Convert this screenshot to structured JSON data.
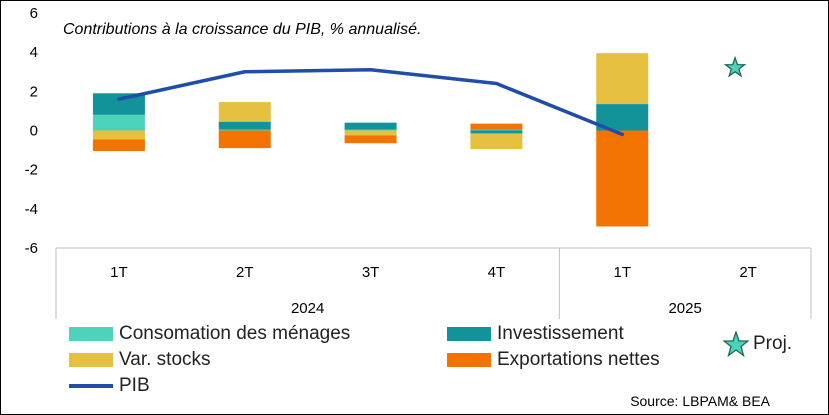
{
  "chart_data": {
    "type": "bar",
    "stacked": true,
    "title": "Contributions à la croissance du PIB, % annualisé.",
    "categories": [
      "1T",
      "2T",
      "3T",
      "4T",
      "1T",
      "2T"
    ],
    "year_groups": [
      {
        "label": "2024",
        "span": 4
      },
      {
        "label": "2025",
        "span": 2
      }
    ],
    "ylim": [
      -6,
      6
    ],
    "yticks": [
      "6",
      "4",
      "2",
      "0",
      "-2",
      "-4",
      "-6"
    ],
    "series": [
      {
        "name": "Consomation des ménages",
        "color": "#4dd3bb",
        "values": [
          0.8,
          0.05,
          0.05,
          0.05,
          0,
          null
        ]
      },
      {
        "name": "Investissement",
        "color": "#12939a",
        "values": [
          1.1,
          0.4,
          0.35,
          -0.15,
          1.35,
          null
        ]
      },
      {
        "name": "Var. stocks",
        "color": "#e6c040",
        "values": [
          -0.45,
          1.0,
          -0.25,
          -0.8,
          2.6,
          null
        ]
      },
      {
        "name": "Exportations nettes",
        "color": "#f27300",
        "values": [
          -0.6,
          -0.9,
          -0.4,
          0.3,
          -4.9,
          null
        ]
      }
    ],
    "line": {
      "name": "PIB",
      "color": "#1f4ea8",
      "values": [
        1.6,
        3.0,
        3.1,
        2.4,
        -0.2,
        null
      ]
    },
    "projection": {
      "name": "Proj.",
      "category_index": 5,
      "value": 3.2,
      "color": "#2e9e6f"
    }
  },
  "legend": {
    "consommation": "Consomation des ménages",
    "investissement": "Investissement",
    "stocks": "Var. stocks",
    "exportations": "Exportations nettes",
    "pib": "PIB",
    "proj": "Proj."
  },
  "source": "Source: LBPAM& BEA"
}
